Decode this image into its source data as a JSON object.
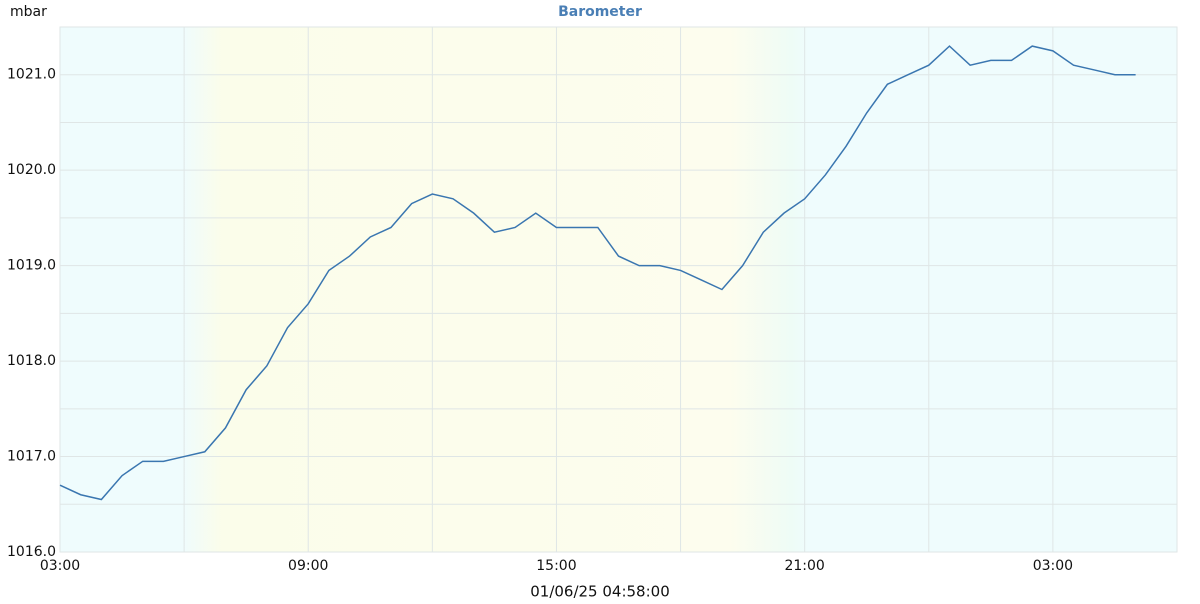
{
  "chart_data": {
    "type": "line",
    "title": "Barometer",
    "y_label": "mbar",
    "x_label": "01/06/25 04:58:00",
    "x": [
      0,
      0.5,
      1,
      1.5,
      2,
      2.5,
      3,
      3.5,
      4,
      4.5,
      5,
      5.5,
      6,
      6.5,
      7,
      7.5,
      8,
      8.5,
      9,
      9.5,
      10,
      10.5,
      11,
      11.5,
      12,
      12.5,
      13,
      13.5,
      14,
      14.5,
      15,
      15.5,
      16,
      16.5,
      17,
      17.5,
      18,
      18.5,
      19,
      19.5,
      20,
      20.5,
      21,
      21.5,
      22,
      22.5,
      23,
      23.5,
      24,
      24.5,
      25,
      25.5,
      26
    ],
    "series": [
      {
        "name": "Barometer",
        "color": "#3a76b0",
        "values": [
          1016.7,
          1016.6,
          1016.55,
          1016.8,
          1016.95,
          1016.95,
          1017.0,
          1017.05,
          1017.3,
          1017.7,
          1017.95,
          1018.35,
          1018.6,
          1018.95,
          1019.1,
          1019.3,
          1019.4,
          1019.65,
          1019.75,
          1019.7,
          1019.55,
          1019.35,
          1019.4,
          1019.55,
          1019.4,
          1019.4,
          1019.4,
          1019.1,
          1019.0,
          1019.0,
          1018.95,
          1018.85,
          1018.75,
          1019.0,
          1019.35,
          1019.55,
          1019.7,
          1019.95,
          1020.25,
          1020.6,
          1020.9,
          1021.0,
          1021.1,
          1021.3,
          1021.1,
          1021.15,
          1021.15,
          1021.3,
          1021.25,
          1021.1,
          1021.05,
          1021.0,
          1021.0
        ]
      }
    ],
    "xlim": [
      0,
      27
    ],
    "xticks": [
      {
        "value": 0,
        "label": "03:00"
      },
      {
        "value": 6,
        "label": "09:00"
      },
      {
        "value": 12,
        "label": "15:00"
      },
      {
        "value": 18,
        "label": "21:00"
      },
      {
        "value": 24,
        "label": "03:00"
      }
    ],
    "minor_xticks": [
      3,
      9,
      15,
      21
    ],
    "ylim": [
      1016,
      1021.5
    ],
    "yticks": [
      {
        "value": 1016,
        "label": "1016.0"
      },
      {
        "value": 1017,
        "label": "1017.0"
      },
      {
        "value": 1018,
        "label": "1018.0"
      },
      {
        "value": 1019,
        "label": "1019.0"
      },
      {
        "value": 1020,
        "label": "1020.0"
      },
      {
        "value": 1021,
        "label": "1021.0"
      }
    ],
    "minor_yticks": [
      1016.5,
      1017.5,
      1018.5,
      1019.5,
      1020.5
    ],
    "grid": true
  }
}
